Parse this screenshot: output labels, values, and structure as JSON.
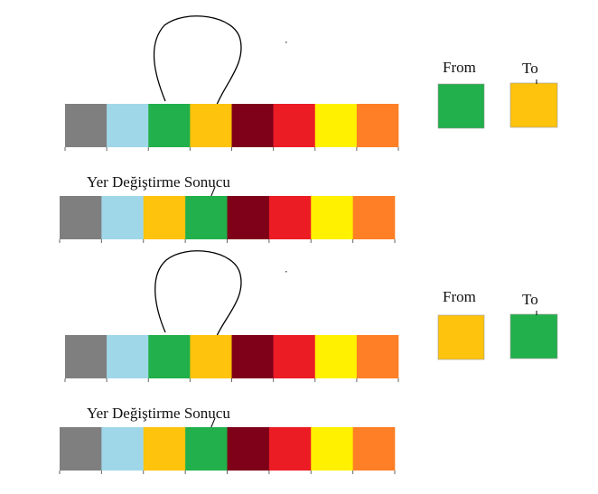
{
  "palette": [
    "#7f7f7f",
    "#9fd7e9",
    "#21b04b",
    "#fec30c",
    "#7e0019",
    "#ec1c24",
    "#fff100",
    "#ff7f26"
  ],
  "sections": [
    {
      "swap_strip": [
        "#7f7f7f",
        "#9fd7e9",
        "#21b04b",
        "#fec30c",
        "#7e0019",
        "#ec1c24",
        "#fff100",
        "#ff7f26"
      ],
      "from_label": "From",
      "to_label": "To",
      "from_color": "#21b04b",
      "to_color": "#fec30c",
      "result_label": "Yer Değiştirme Sonucu",
      "result_strip": [
        "#7f7f7f",
        "#9fd7e9",
        "#fec30c",
        "#21b04b",
        "#7e0019",
        "#ec1c24",
        "#fff100",
        "#ff7f26"
      ]
    },
    {
      "swap_strip": [
        "#7f7f7f",
        "#9fd7e9",
        "#21b04b",
        "#fec30c",
        "#7e0019",
        "#ec1c24",
        "#fff100",
        "#ff7f26"
      ],
      "from_label": "From",
      "to_label": "To",
      "from_color": "#fec30c",
      "to_color": "#21b04b",
      "result_label": "Yer Değiştirme Sonucu",
      "result_strip": [
        "#7f7f7f",
        "#9fd7e9",
        "#fec30c",
        "#21b04b",
        "#7e0019",
        "#ec1c24",
        "#fff100",
        "#ff7f26"
      ]
    }
  ]
}
